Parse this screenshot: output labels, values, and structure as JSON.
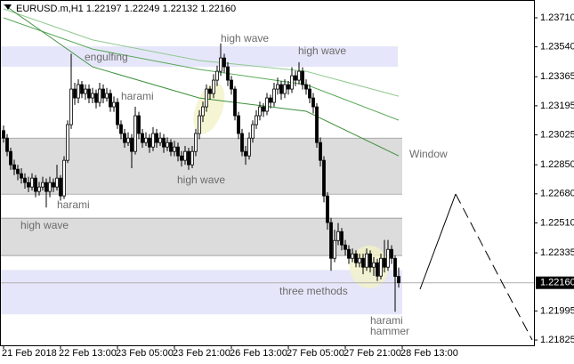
{
  "chart_data": {
    "type": "candlestick",
    "title": "EURUSD.m,H1  1.22197 1.22249 1.22132 1.22160",
    "up_color": "#ffffff",
    "down_color": "#000000",
    "xlim": [
      -1,
      149
    ],
    "ylim": [
      1.21794,
      1.23814
    ],
    "grid": false,
    "xticks": [
      {
        "value": 0,
        "label": "21 Feb 2018"
      },
      {
        "value": 16,
        "label": "22 Feb 13:00"
      },
      {
        "value": 32,
        "label": "23 Feb 05:00"
      },
      {
        "value": 48,
        "label": "23 Feb 21:00"
      },
      {
        "value": 64,
        "label": "26 Feb 13:00"
      },
      {
        "value": 80,
        "label": "27 Feb 05:00"
      },
      {
        "value": 96,
        "label": "27 Feb 21:00"
      },
      {
        "value": 112,
        "label": "28 Feb 13:00"
      }
    ],
    "yticks": [
      {
        "value": 1.2371,
        "label": "1.23710"
      },
      {
        "value": 1.2354,
        "label": "1.23540"
      },
      {
        "value": 1.23365,
        "label": "1.23365"
      },
      {
        "value": 1.23195,
        "label": "1.23195"
      },
      {
        "value": 1.23025,
        "label": "1.23025"
      },
      {
        "value": 1.2285,
        "label": "1.22850"
      },
      {
        "value": 1.2268,
        "label": "1.22680"
      },
      {
        "value": 1.2251,
        "label": "1.22510"
      },
      {
        "value": 1.22335,
        "label": "1.22335"
      },
      {
        "value": 1.21995,
        "label": "1.21995"
      },
      {
        "value": 1.21825,
        "label": "1.21825"
      }
    ],
    "current_price": {
      "value": 1.2216,
      "label": "1.22160"
    },
    "zones": [
      {
        "top": 1.23543,
        "bottom": 1.23423,
        "color": "#e6e6fa"
      },
      {
        "top": 1.23006,
        "bottom": 1.22678,
        "color": "#dcdcdc"
      },
      {
        "top": 1.22538,
        "bottom": 1.22319,
        "color": "#dcdcdc"
      },
      {
        "top": 1.22235,
        "bottom": 1.21975,
        "color": "#e6e6fa"
      }
    ],
    "moving_averages": [
      {
        "color": "#8fc98f",
        "x": [
          0,
          25,
          55,
          85,
          111
        ],
        "values": [
          1.23762,
          1.2358,
          1.2346,
          1.23397,
          1.23251
        ]
      },
      {
        "color": "#5aa95a",
        "x": [
          0,
          25,
          55,
          85,
          111
        ],
        "values": [
          1.2371,
          1.23527,
          1.23408,
          1.23319,
          1.23111
        ]
      },
      {
        "color": "#3c8f3c",
        "x": [
          0,
          25,
          55,
          85,
          111
        ],
        "values": [
          1.23788,
          1.23423,
          1.23241,
          1.23163,
          1.22902
        ]
      }
    ],
    "annotations": [
      "engulfing",
      "high wave",
      "high wave",
      "harami",
      "high wave",
      "harami",
      "high wave",
      "Window",
      "three methods",
      "harami",
      "hammer"
    ],
    "candles": [
      [
        1.2305,
        1.2308,
        1.2298,
        1.23006
      ],
      [
        1.23006,
        1.2303,
        1.229,
        1.22928
      ],
      [
        1.22928,
        1.2295,
        1.2282,
        1.2285
      ],
      [
        1.2285,
        1.2288,
        1.2279,
        1.22824
      ],
      [
        1.22824,
        1.2285,
        1.2276,
        1.22798
      ],
      [
        1.22798,
        1.2283,
        1.2274,
        1.22772
      ],
      [
        1.22772,
        1.228,
        1.2271,
        1.22746
      ],
      [
        1.22746,
        1.2278,
        1.2269,
        1.2272
      ],
      [
        1.2272,
        1.228,
        1.227,
        1.22772
      ],
      [
        1.22772,
        1.2279,
        1.2266,
        1.22694
      ],
      [
        1.22694,
        1.2275,
        1.2267,
        1.2272
      ],
      [
        1.2272,
        1.2278,
        1.227,
        1.22746
      ],
      [
        1.22746,
        1.2277,
        1.226,
        1.22694
      ],
      [
        1.22694,
        1.2278,
        1.2266,
        1.22746
      ],
      [
        1.22746,
        1.2277,
        1.2269,
        1.2272
      ],
      [
        1.2272,
        1.2285,
        1.227,
        1.22772
      ],
      [
        1.22772,
        1.2279,
        1.2264,
        1.22668
      ],
      [
        1.22668,
        1.229,
        1.2265,
        1.22876
      ],
      [
        1.22876,
        1.2311,
        1.2286,
        1.23085
      ],
      [
        1.23085,
        1.235,
        1.2306,
        1.23293
      ],
      [
        1.23293,
        1.2333,
        1.232,
        1.23241
      ],
      [
        1.23241,
        1.2335,
        1.2321,
        1.23319
      ],
      [
        1.23319,
        1.2334,
        1.2324,
        1.23267
      ],
      [
        1.23267,
        1.2332,
        1.2323,
        1.23293
      ],
      [
        1.23293,
        1.2332,
        1.2321,
        1.23241
      ],
      [
        1.23241,
        1.233,
        1.2321,
        1.23267
      ],
      [
        1.23267,
        1.2329,
        1.2318,
        1.23215
      ],
      [
        1.23215,
        1.2333,
        1.2319,
        1.23293
      ],
      [
        1.23293,
        1.2332,
        1.2321,
        1.23241
      ],
      [
        1.23241,
        1.233,
        1.2322,
        1.23267
      ],
      [
        1.23267,
        1.2329,
        1.2316,
        1.23189
      ],
      [
        1.23189,
        1.2325,
        1.2316,
        1.23215
      ],
      [
        1.23215,
        1.2324,
        1.2306,
        1.23085
      ],
      [
        1.23085,
        1.2311,
        1.23,
        1.23033
      ],
      [
        1.23033,
        1.2306,
        1.2295,
        1.2298
      ],
      [
        1.2298,
        1.2304,
        1.2296,
        1.23006
      ],
      [
        1.23006,
        1.2303,
        1.2283,
        1.22928
      ],
      [
        1.22928,
        1.2319,
        1.2291,
        1.23137
      ],
      [
        1.23137,
        1.2316,
        1.23,
        1.23033
      ],
      [
        1.23033,
        1.2306,
        1.2295,
        1.2298
      ],
      [
        1.2298,
        1.2304,
        1.2296,
        1.23006
      ],
      [
        1.23006,
        1.2303,
        1.2292,
        1.22954
      ],
      [
        1.22954,
        1.2307,
        1.2293,
        1.23033
      ],
      [
        1.23033,
        1.2306,
        1.2295,
        1.2298
      ],
      [
        1.2298,
        1.2304,
        1.2296,
        1.23006
      ],
      [
        1.23006,
        1.2303,
        1.2292,
        1.22954
      ],
      [
        1.22954,
        1.2301,
        1.2293,
        1.2298
      ],
      [
        1.2298,
        1.23,
        1.229,
        1.22928
      ],
      [
        1.22928,
        1.2299,
        1.229,
        1.22954
      ],
      [
        1.22954,
        1.2298,
        1.2287,
        1.22902
      ],
      [
        1.22902,
        1.2293,
        1.2284,
        1.22876
      ],
      [
        1.22876,
        1.2296,
        1.2285,
        1.22928
      ],
      [
        1.22928,
        1.2295,
        1.2282,
        1.2285
      ],
      [
        1.2285,
        1.2296,
        1.2283,
        1.22928
      ],
      [
        1.22928,
        1.2306,
        1.229,
        1.23033
      ],
      [
        1.23033,
        1.2317,
        1.23,
        1.23137
      ],
      [
        1.23137,
        1.2322,
        1.231,
        1.23189
      ],
      [
        1.23189,
        1.2332,
        1.2316,
        1.23293
      ],
      [
        1.23293,
        1.2331,
        1.2323,
        1.23267
      ],
      [
        1.23267,
        1.2338,
        1.2324,
        1.23345
      ],
      [
        1.23345,
        1.2343,
        1.2331,
        1.23397
      ],
      [
        1.23397,
        1.2356,
        1.2337,
        1.23475
      ],
      [
        1.23475,
        1.235,
        1.2339,
        1.23423
      ],
      [
        1.23423,
        1.2345,
        1.2331,
        1.23345
      ],
      [
        1.23345,
        1.2337,
        1.2326,
        1.23293
      ],
      [
        1.23293,
        1.2331,
        1.2311,
        1.23137
      ],
      [
        1.23137,
        1.2316,
        1.23,
        1.23033
      ],
      [
        1.23033,
        1.2306,
        1.229,
        1.22928
      ],
      [
        1.22928,
        1.2296,
        1.2285,
        1.22902
      ],
      [
        1.22902,
        1.2304,
        1.2288,
        1.23006
      ],
      [
        1.23006,
        1.2311,
        1.2298,
        1.23085
      ],
      [
        1.23085,
        1.2317,
        1.2306,
        1.23137
      ],
      [
        1.23137,
        1.2322,
        1.2311,
        1.23189
      ],
      [
        1.23189,
        1.2321,
        1.2313,
        1.23163
      ],
      [
        1.23163,
        1.2327,
        1.2314,
        1.23241
      ],
      [
        1.23241,
        1.2326,
        1.2318,
        1.23215
      ],
      [
        1.23215,
        1.2333,
        1.2319,
        1.23293
      ],
      [
        1.23293,
        1.2336,
        1.2326,
        1.23319
      ],
      [
        1.23319,
        1.2334,
        1.2323,
        1.23267
      ],
      [
        1.23267,
        1.2335,
        1.2324,
        1.23319
      ],
      [
        1.23319,
        1.2334,
        1.2326,
        1.23293
      ],
      [
        1.23293,
        1.2342,
        1.2327,
        1.23371
      ],
      [
        1.23371,
        1.234,
        1.2331,
        1.23345
      ],
      [
        1.23345,
        1.2345,
        1.2332,
        1.23397
      ],
      [
        1.23397,
        1.2342,
        1.2329,
        1.23319
      ],
      [
        1.23319,
        1.2335,
        1.2326,
        1.23293
      ],
      [
        1.23293,
        1.2332,
        1.2321,
        1.23241
      ],
      [
        1.23241,
        1.2327,
        1.2315,
        1.23189
      ],
      [
        1.23189,
        1.2321,
        1.2295,
        1.2298
      ],
      [
        1.2298,
        1.2301,
        1.2284,
        1.22876
      ],
      [
        1.22876,
        1.229,
        1.2263,
        1.22668
      ],
      [
        1.22668,
        1.2269,
        1.2247,
        1.22512
      ],
      [
        1.22512,
        1.2254,
        1.2223,
        1.22303
      ],
      [
        1.22303,
        1.2247,
        1.2228,
        1.22407
      ],
      [
        1.22407,
        1.2251,
        1.2238,
        1.22459
      ],
      [
        1.22459,
        1.2248,
        1.2235,
        1.22381
      ],
      [
        1.22381,
        1.2241,
        1.2232,
        1.22355
      ],
      [
        1.22355,
        1.2238,
        1.2227,
        1.22303
      ],
      [
        1.22303,
        1.2236,
        1.2228,
        1.22329
      ],
      [
        1.22329,
        1.2235,
        1.2225,
        1.22277
      ],
      [
        1.22277,
        1.2233,
        1.2225,
        1.22303
      ],
      [
        1.22303,
        1.2233,
        1.2221,
        1.22251
      ],
      [
        1.22251,
        1.2236,
        1.2223,
        1.22329
      ],
      [
        1.22329,
        1.2235,
        1.2222,
        1.22251
      ],
      [
        1.22251,
        1.2231,
        1.222,
        1.22277
      ],
      [
        1.22277,
        1.223,
        1.2217,
        1.22199
      ],
      [
        1.22199,
        1.2233,
        1.2218,
        1.22303
      ],
      [
        1.22303,
        1.2241,
        1.2222,
        1.22251
      ],
      [
        1.22251,
        1.2241,
        1.2223,
        1.22355
      ],
      [
        1.22355,
        1.2238,
        1.2227,
        1.22303
      ],
      [
        1.22303,
        1.2232,
        1.2199,
        1.22197
      ],
      [
        1.22197,
        1.22249,
        1.22132,
        1.2216
      ]
    ]
  }
}
